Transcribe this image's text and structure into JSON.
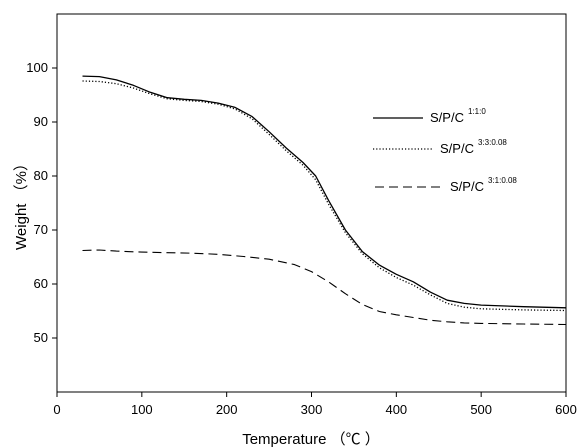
{
  "chart_data": {
    "type": "line",
    "xlabel": "Temperature （℃ ）",
    "ylabel": "Weight （%）",
    "xlim": [
      0,
      600
    ],
    "ylim": [
      40,
      110
    ],
    "xticks": [
      0,
      100,
      200,
      300,
      400,
      500,
      600
    ],
    "yticks": [
      50,
      60,
      70,
      80,
      90,
      100
    ],
    "grid": false,
    "legend_position": "right",
    "series": [
      {
        "name": "S/P/C",
        "name_sup": "1:1:0",
        "style": "solid",
        "color": "#000000",
        "x": [
          30,
          50,
          70,
          90,
          110,
          130,
          150,
          170,
          190,
          210,
          230,
          250,
          270,
          290,
          305,
          320,
          340,
          360,
          380,
          400,
          420,
          440,
          460,
          480,
          500,
          550,
          600
        ],
        "y": [
          98.5,
          98.4,
          97.8,
          96.8,
          95.5,
          94.5,
          94.2,
          94.0,
          93.5,
          92.7,
          91.0,
          88.2,
          85.2,
          82.5,
          80.0,
          75.5,
          70.0,
          66.0,
          63.5,
          61.8,
          60.4,
          58.5,
          57.0,
          56.4,
          56.1,
          55.8,
          55.6
        ]
      },
      {
        "name": "S/P/C",
        "name_sup": "3:3:0.08",
        "style": "dotted",
        "color": "#000000",
        "x": [
          30,
          50,
          70,
          90,
          110,
          130,
          150,
          170,
          190,
          210,
          230,
          250,
          270,
          290,
          305,
          320,
          340,
          360,
          380,
          400,
          420,
          440,
          460,
          480,
          500,
          550,
          600
        ],
        "y": [
          97.6,
          97.5,
          97.1,
          96.3,
          95.2,
          94.3,
          94.0,
          93.8,
          93.3,
          92.4,
          90.6,
          87.7,
          84.7,
          82.0,
          79.3,
          74.8,
          69.5,
          65.6,
          63.0,
          61.2,
          59.8,
          58.0,
          56.4,
          55.7,
          55.4,
          55.2,
          55.1
        ]
      },
      {
        "name": "S/P/C",
        "name_sup": "3:1:0.08",
        "style": "dashed",
        "color": "#000000",
        "x": [
          30,
          50,
          70,
          100,
          130,
          160,
          190,
          220,
          250,
          280,
          300,
          320,
          340,
          360,
          380,
          400,
          420,
          440,
          460,
          480,
          500,
          550,
          600
        ],
        "y": [
          66.2,
          66.3,
          66.1,
          65.9,
          65.8,
          65.7,
          65.5,
          65.1,
          64.6,
          63.6,
          62.3,
          60.4,
          58.2,
          56.2,
          54.9,
          54.3,
          53.8,
          53.3,
          53.0,
          52.8,
          52.7,
          52.6,
          52.5
        ]
      }
    ]
  }
}
